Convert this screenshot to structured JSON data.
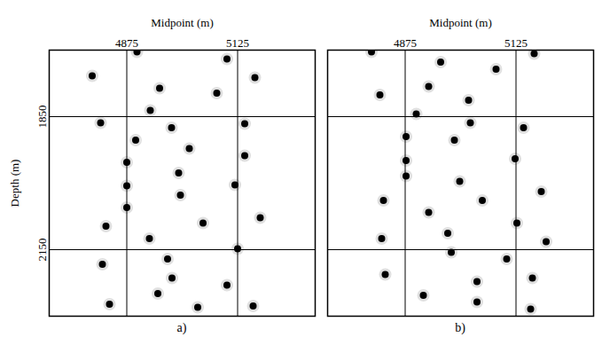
{
  "chart_data": [
    {
      "type": "scatter",
      "title": "a)",
      "xlabel": "Midpoint (m)",
      "ylabel": "Depth (m)",
      "xlim": [
        4700,
        5300
      ],
      "xticks": [
        4875,
        5125
      ],
      "ylim": [
        1700,
        2300
      ],
      "yticks": [
        1850,
        2150
      ],
      "grid": true,
      "color": "#000000",
      "marker": "circle",
      "x": [
        4797,
        4898,
        5101,
        4949,
        5164,
        5078,
        4928,
        4816,
        4976,
        5141,
        4895,
        5016,
        4875,
        5141,
        4992,
        4875,
        5119,
        4996,
        4875,
        4828,
        5047,
        5176,
        4926,
        5125,
        4820,
        4967,
        4977,
        5101,
        4945,
        4836,
        5035,
        5160
      ],
      "y": [
        1758,
        1704,
        1720,
        1786,
        1762,
        1797,
        1836,
        1864,
        1875,
        1866,
        1903,
        1922,
        1953,
        1938,
        1977,
        2006,
        2004,
        2027,
        2055,
        2097,
        2090,
        2078,
        2125,
        2148,
        2183,
        2171,
        2214,
        2230,
        2249,
        2273,
        2280,
        2277
      ]
    },
    {
      "type": "scatter",
      "title": "b)",
      "xlabel": "Midpoint (m)",
      "xlim": [
        4700,
        5300
      ],
      "xticks": [
        4875,
        5125
      ],
      "ylim": [
        1700,
        2300
      ],
      "yticks": [
        1850,
        2150
      ],
      "grid": true,
      "color": "#000000",
      "marker": "circle",
      "tick_labels": "x",
      "x": [
        4799,
        4955,
        5166,
        5080,
        4928,
        4818,
        5018,
        4900,
        5022,
        5142,
        4877,
        4986,
        4877,
        5123,
        4877,
        4998,
        5049,
        5182,
        4826,
        4928,
        5127,
        4822,
        4971,
        5193,
        4979,
        5104,
        4830,
        5037,
        5162,
        4916,
        5037,
        5158
      ],
      "y": [
        1704,
        1727,
        1708,
        1743,
        1782,
        1801,
        1813,
        1844,
        1864,
        1875,
        1895,
        1903,
        1949,
        1945,
        1984,
        1996,
        2039,
        2019,
        2039,
        2066,
        2090,
        2125,
        2113,
        2132,
        2156,
        2171,
        2206,
        2222,
        2214,
        2253,
        2268,
        2284
      ]
    }
  ]
}
